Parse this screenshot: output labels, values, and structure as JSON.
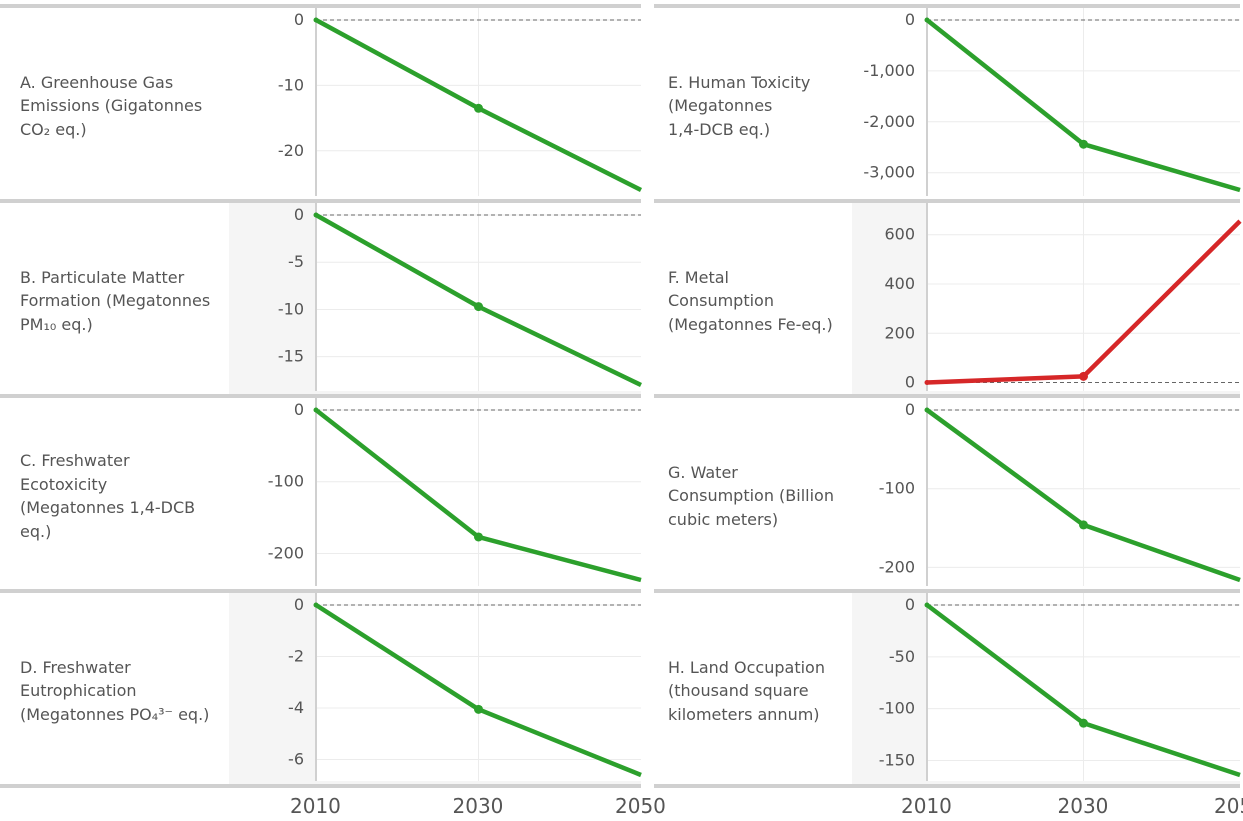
{
  "x_axis": {
    "ticks": [
      "2010",
      "2030",
      "2050"
    ]
  },
  "colors": {
    "decrease": "#2ca02c",
    "increase": "#d62728",
    "shade": "#f5f5f5",
    "grid": "#ececec",
    "axis": "#d0d0d0"
  },
  "chart_data": [
    {
      "id": "A",
      "type": "line",
      "label": "A. Greenhouse Gas\nEmissions (Gigatonnes\nCO₂ eq.)",
      "x": [
        2010,
        2030,
        2050
      ],
      "y": [
        0,
        -13.5,
        -26
      ],
      "ylim": [
        -26,
        0
      ],
      "yticks": [
        0,
        -10,
        -20
      ],
      "ytick_labels": [
        "0",
        "-10",
        "-20"
      ],
      "color": "#2ca02c",
      "shaded": false,
      "grid": true
    },
    {
      "id": "B",
      "type": "line",
      "label": "B. Particulate Matter\nFormation (Megatonnes\nPM₁₀ eq.)",
      "x": [
        2010,
        2030,
        2050
      ],
      "y": [
        0,
        -9.7,
        -18
      ],
      "ylim": [
        -18,
        0
      ],
      "yticks": [
        0,
        -5,
        -10,
        -15
      ],
      "ytick_labels": [
        "0",
        "-5",
        "-10",
        "-15"
      ],
      "color": "#2ca02c",
      "shaded": true,
      "grid": true
    },
    {
      "id": "C",
      "type": "line",
      "label": "C. Freshwater\nEcotoxicity\n(Megatonnes 1,4-DCB\neq.)",
      "x": [
        2010,
        2030,
        2050
      ],
      "y": [
        0,
        -177,
        -237
      ],
      "ylim": [
        -237,
        0
      ],
      "yticks": [
        0,
        -100,
        -200
      ],
      "ytick_labels": [
        "0",
        "-100",
        "-200"
      ],
      "color": "#2ca02c",
      "shaded": false,
      "grid": true
    },
    {
      "id": "D",
      "type": "line",
      "label": "D. Freshwater\nEutrophication\n(Megatonnes PO₄³⁻ eq.)",
      "x": [
        2010,
        2030,
        2050
      ],
      "y": [
        0,
        -4.05,
        -6.6
      ],
      "ylim": [
        -6.6,
        0
      ],
      "yticks": [
        0,
        -2,
        -4,
        -6
      ],
      "ytick_labels": [
        "0",
        "-2",
        "-4",
        "-6"
      ],
      "color": "#2ca02c",
      "shaded": true,
      "grid": true
    },
    {
      "id": "E",
      "type": "line",
      "label": "E. Human Toxicity\n(Megatonnes\n1,4-DCB eq.)",
      "x": [
        2010,
        2030,
        2050
      ],
      "y": [
        0,
        -2440,
        -3340
      ],
      "ylim": [
        -3340,
        0
      ],
      "yticks": [
        0,
        -1000,
        -2000,
        -3000
      ],
      "ytick_labels": [
        "0",
        "-1,000",
        "-2,000",
        "-3,000"
      ],
      "color": "#2ca02c",
      "shaded": false,
      "grid": true
    },
    {
      "id": "F",
      "type": "line",
      "label": "F. Metal\nConsumption\n(Megatonnes Fe-eq.)",
      "x": [
        2010,
        2030,
        2050
      ],
      "y": [
        0,
        25,
        655
      ],
      "ylim": [
        -10,
        680
      ],
      "yticks": [
        0,
        200,
        400,
        600
      ],
      "ytick_labels": [
        "0",
        "200",
        "400",
        "600"
      ],
      "color": "#d62728",
      "shaded": true,
      "grid": false
    },
    {
      "id": "G",
      "type": "line",
      "label": "G. Water\nConsumption (Billion\ncubic meters)",
      "x": [
        2010,
        2030,
        2050
      ],
      "y": [
        0,
        -146,
        -216
      ],
      "ylim": [
        -216,
        0
      ],
      "yticks": [
        0,
        -100,
        -200
      ],
      "ytick_labels": [
        "0",
        "-100",
        "-200"
      ],
      "color": "#2ca02c",
      "shaded": false,
      "grid": true
    },
    {
      "id": "H",
      "type": "line",
      "label": "H. Land Occupation\n(thousand square\nkilometers annum)",
      "x": [
        2010,
        2030,
        2050
      ],
      "y": [
        0,
        -114,
        -164
      ],
      "ylim": [
        -164,
        0
      ],
      "yticks": [
        0,
        -50,
        -100,
        -150
      ],
      "ytick_labels": [
        "0",
        "-50",
        "-100",
        "-150"
      ],
      "color": "#2ca02c",
      "shaded": true,
      "grid": true
    }
  ]
}
